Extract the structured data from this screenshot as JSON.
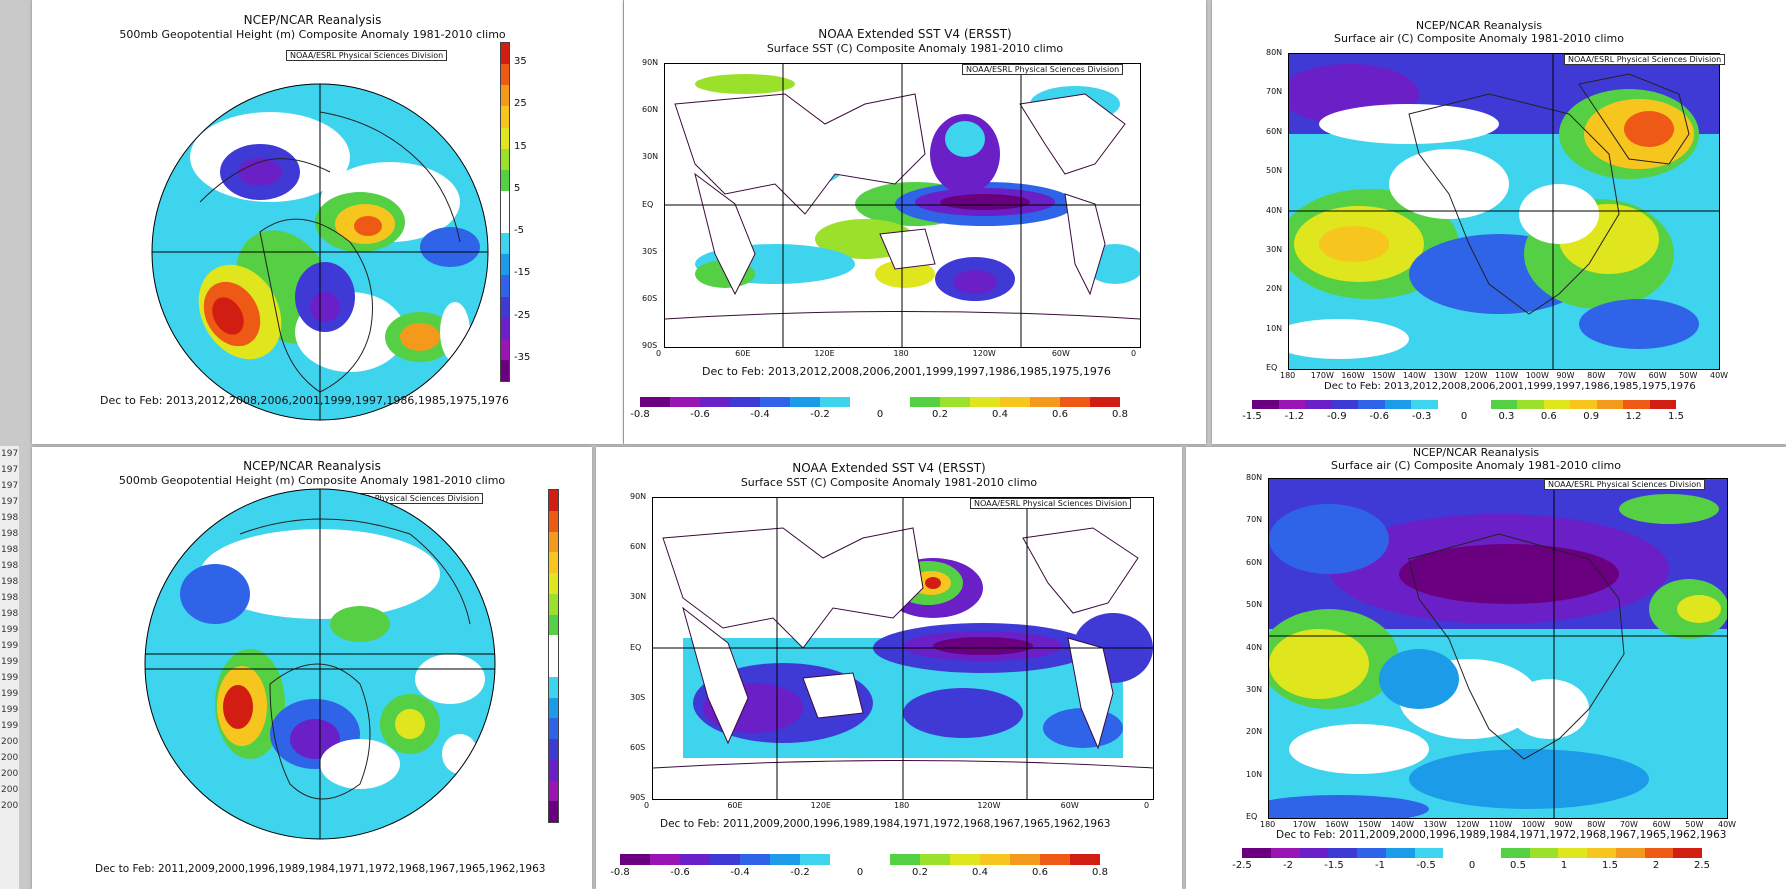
{
  "colors": {
    "scale": [
      "#6a0080",
      "#9b14b4",
      "#6a1fc7",
      "#3f3ad6",
      "#2f63e8",
      "#1c9be8",
      "#3fd4ee",
      "#ffffff",
      "#ffffff",
      "#55d045",
      "#9be02a",
      "#e0e61d",
      "#f6c51e",
      "#f39a1d",
      "#ee5a16",
      "#d21d12"
    ],
    "vscale": [
      "#d21d12",
      "#ee5a16",
      "#f39a1d",
      "#f6c51e",
      "#e0e61d",
      "#9be02a",
      "#55d045",
      "#ffffff",
      "#ffffff",
      "#3fd4ee",
      "#1c9be8",
      "#2f63e8",
      "#3f3ad6",
      "#6a1fc7",
      "#9b14b4",
      "#6a0080"
    ]
  },
  "left_strip": [
    "197",
    "197",
    "197",
    "197",
    "198",
    "198",
    "198",
    "198",
    "198",
    "198",
    "198",
    "199",
    "199",
    "199",
    "199",
    "199",
    "199",
    "199",
    "200",
    "200",
    "200",
    "200",
    "200"
  ],
  "panels": {
    "p1": {
      "title1": "NCEP/NCAR Reanalysis",
      "title2": "500mb Geopotential Height (m) Composite Anomaly 1981-2010 climo",
      "credit": "NOAA/ESRL Physical Sciences Division",
      "caption": "Dec to Feb: 2013,2012,2008,2006,2001,1999,1997,1986,1985,1975,1976",
      "vbar_labels": [
        "35",
        "25",
        "15",
        "5",
        "-5",
        "-15",
        "-25",
        "-35"
      ]
    },
    "p2": {
      "title1": "NOAA Extended SST V4 (ERSST)",
      "title2": "Surface SST (C) Composite Anomaly 1981-2010 climo",
      "credit": "NOAA/ESRL Physical Sciences Division",
      "caption": "Dec to Feb: 2013,2012,2008,2006,2001,1999,1997,1986,1985,1975,1976",
      "lat_labels": [
        "90N",
        "60N",
        "30N",
        "EQ",
        "30S",
        "60S",
        "90S"
      ],
      "lon_labels": [
        "0",
        "60E",
        "120E",
        "180",
        "120W",
        "60W",
        "0"
      ],
      "cbar_labels": [
        "-0.8",
        "-0.6",
        "-0.4",
        "-0.2",
        "0",
        "0.2",
        "0.4",
        "0.6",
        "0.8"
      ]
    },
    "p3": {
      "title1": "NCEP/NCAR Reanalysis",
      "title2": "Surface air (C) Composite Anomaly 1981-2010 climo",
      "credit": "NOAA/ESRL Physical Sciences Division",
      "caption": "Dec to Feb: 2013,2012,2008,2006,2001,1999,1997,1986,1985,1975,1976",
      "lat_labels": [
        "80N",
        "70N",
        "60N",
        "50N",
        "40N",
        "30N",
        "20N",
        "10N",
        "EQ"
      ],
      "lon_labels": [
        "180",
        "170W",
        "160W",
        "150W",
        "140W",
        "130W",
        "120W",
        "110W",
        "100W",
        "90W",
        "80W",
        "70W",
        "60W",
        "50W",
        "40W"
      ],
      "cbar_labels": [
        "-1.5",
        "-1.2",
        "-0.9",
        "-0.6",
        "-0.3",
        "0",
        "0.3",
        "0.6",
        "0.9",
        "1.2",
        "1.5"
      ]
    },
    "p4": {
      "title1": "NCEP/NCAR Reanalysis",
      "title2": "500mb Geopotential Height (m) Composite Anomaly 1981-2010 climo",
      "credit": "NOAA/ESRL Physical Sciences Division",
      "caption": "Dec to Feb: 2011,2009,2000,1996,1989,1984,1971,1972,1968,1967,1965,1962,1963"
    },
    "p5": {
      "title1": "NOAA Extended SST V4 (ERSST)",
      "title2": "Surface SST (C) Composite Anomaly 1981-2010 climo",
      "credit": "NOAA/ESRL Physical Sciences Division",
      "caption": "Dec to Feb: 2011,2009,2000,1996,1989,1984,1971,1972,1968,1967,1965,1962,1963",
      "lat_labels": [
        "90N",
        "60N",
        "30N",
        "EQ",
        "30S",
        "60S",
        "90S"
      ],
      "lon_labels": [
        "0",
        "60E",
        "120E",
        "180",
        "120W",
        "60W",
        "0"
      ],
      "cbar_labels": [
        "-0.8",
        "-0.6",
        "-0.4",
        "-0.2",
        "0",
        "0.2",
        "0.4",
        "0.6",
        "0.8"
      ]
    },
    "p6": {
      "title1": "NCEP/NCAR Reanalysis",
      "title2": "Surface air (C) Composite Anomaly 1981-2010 climo",
      "credit": "NOAA/ESRL Physical Sciences Division",
      "caption": "Dec to Feb: 2011,2009,2000,1996,1989,1984,1971,1972,1968,1967,1965,1962,1963",
      "lat_labels": [
        "80N",
        "70N",
        "60N",
        "50N",
        "40N",
        "30N",
        "20N",
        "10N",
        "EQ"
      ],
      "lon_labels": [
        "180",
        "170W",
        "160W",
        "150W",
        "140W",
        "130W",
        "120W",
        "110W",
        "100W",
        "90W",
        "80W",
        "70W",
        "60W",
        "50W",
        "40W"
      ],
      "cbar_labels": [
        "-2.5",
        "-2",
        "-1.5",
        "-1",
        "-0.5",
        "0",
        "0.5",
        "1",
        "1.5",
        "2",
        "2.5"
      ]
    }
  }
}
